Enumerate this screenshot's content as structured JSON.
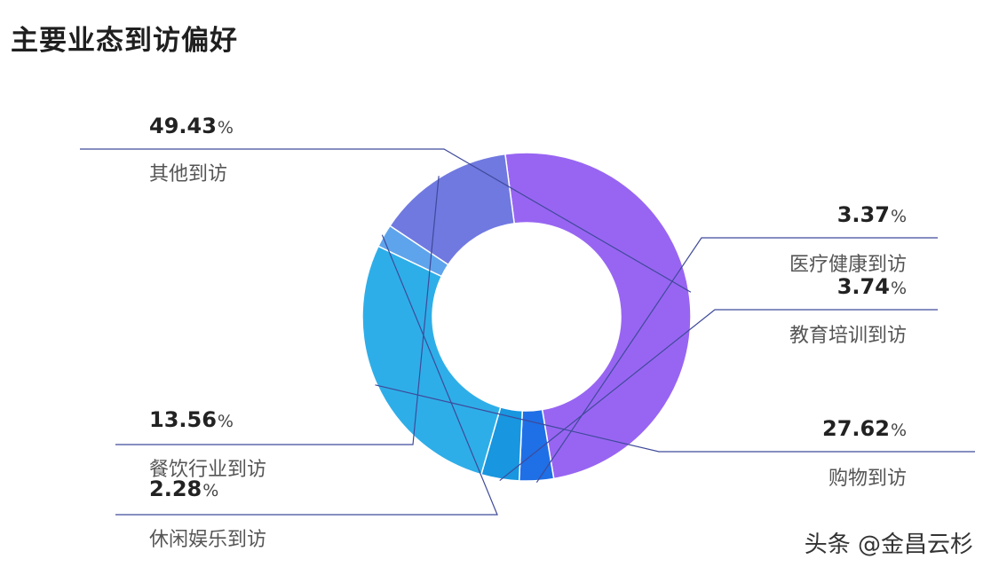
{
  "title": "主要业态到访偏好",
  "watermark": "头条 @金昌云杉",
  "chart_data": {
    "type": "pie",
    "donut": true,
    "unit": "%",
    "slices": [
      {
        "label": "其他到访",
        "value": 49.43,
        "display": "49.43",
        "color": "#9865f2"
      },
      {
        "label": "医疗健康到访",
        "value": 3.37,
        "display": "3.37",
        "color": "#1f6fe6"
      },
      {
        "label": "教育培训到访",
        "value": 3.74,
        "display": "3.74",
        "color": "#1896df"
      },
      {
        "label": "购物到访",
        "value": 27.62,
        "display": "27.62",
        "color": "#2eaee8"
      },
      {
        "label": "休闲娱乐到访",
        "value": 2.28,
        "display": "2.28",
        "color": "#5ea4ec"
      },
      {
        "label": "餐饮行业到访",
        "value": 13.56,
        "display": "13.56",
        "color": "#7079e0"
      }
    ]
  }
}
